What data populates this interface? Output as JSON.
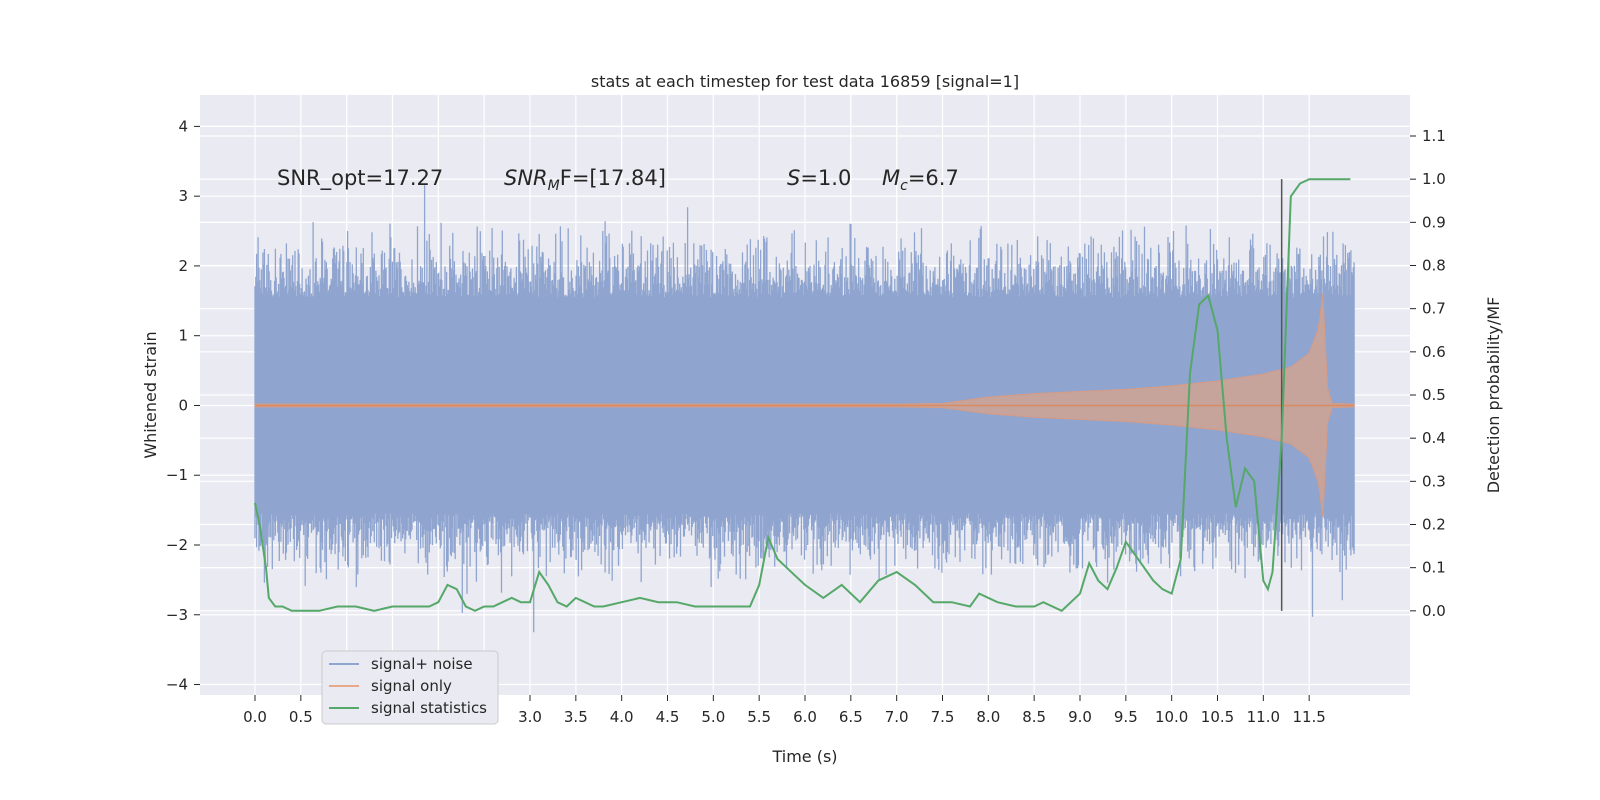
{
  "chart_data": {
    "type": "line",
    "title": "stats at each timestep for test data 16859 [signal=1]",
    "xlabel": "Time (s)",
    "ylabel": "Whitened strain",
    "y2label": "Detection probability/MF",
    "xlim": [
      -0.6,
      12.6
    ],
    "ylim": [
      -4.15,
      4.45
    ],
    "y2lim": [
      -0.195,
      1.195
    ],
    "x_ticks": [
      0.0,
      0.5,
      1.0,
      1.5,
      2.0,
      2.5,
      3.0,
      3.5,
      4.0,
      4.5,
      5.0,
      5.5,
      6.0,
      6.5,
      7.0,
      7.5,
      8.0,
      8.5,
      9.0,
      9.5,
      10.0,
      10.5,
      11.0,
      11.5
    ],
    "x_tick_labels": [
      "0.0",
      "0.5",
      "1.0",
      "1.5",
      "2.0",
      "2.5",
      "3.0",
      "3.5",
      "4.0",
      "4.5",
      "5.0",
      "5.5",
      "6.0",
      "6.5",
      "7.0",
      "7.5",
      "8.0",
      "8.5",
      "9.0",
      "9.5",
      "10.0",
      "10.5",
      "11.0",
      "11.5"
    ],
    "y_ticks": [
      -4,
      -3,
      -2,
      -1,
      0,
      1,
      2,
      3,
      4
    ],
    "y_tick_labels": [
      "−4",
      "−3",
      "−2",
      "−1",
      "0",
      "1",
      "2",
      "3",
      "4"
    ],
    "y2_ticks": [
      0.0,
      0.1,
      0.2,
      0.3,
      0.4,
      0.5,
      0.6,
      0.7,
      0.8,
      0.9,
      1.0,
      1.1
    ],
    "y2_tick_labels": [
      "0.0",
      "0.1",
      "0.2",
      "0.3",
      "0.4",
      "0.5",
      "0.6",
      "0.7",
      "0.8",
      "0.9",
      "1.0",
      "1.1"
    ],
    "grid": true,
    "legend_position": "lower-left",
    "annotations": {
      "snr_opt": "SNR_opt=17.27",
      "snr_mf_label": "SNR",
      "snr_mf_sub": "M",
      "snr_mf_rest": "F=[17.84]",
      "s_label": "S",
      "s_rest": "=1.0",
      "mc_label": "M",
      "mc_sub": "c",
      "mc_rest": "=6.7"
    },
    "series": [
      {
        "name": "signal+ noise",
        "color": "#8fa5cf",
        "axis": "left",
        "description_values": {
          "x_start": 0.0,
          "x_end": 11.99,
          "typical_amplitude": 1.4,
          "peak_max": 4.1,
          "peak_min": -3.75
        }
      },
      {
        "name": "signal only",
        "color": "#dd8452",
        "axis": "left",
        "envelope": {
          "x": [
            0.0,
            7.0,
            7.5,
            8.0,
            8.5,
            9.0,
            9.5,
            10.0,
            10.5,
            11.0,
            11.3,
            11.5,
            11.6,
            11.65,
            11.7,
            11.75,
            11.99
          ],
          "amp": [
            0.02,
            0.02,
            0.03,
            0.12,
            0.17,
            0.2,
            0.23,
            0.28,
            0.35,
            0.45,
            0.55,
            0.75,
            1.1,
            1.6,
            0.25,
            0.03,
            0.02
          ]
        }
      },
      {
        "name": "signal statistics",
        "color": "#55a868",
        "axis": "right",
        "x": [
          0.0,
          0.05,
          0.12,
          0.15,
          0.22,
          0.3,
          0.4,
          0.5,
          0.7,
          0.9,
          1.1,
          1.3,
          1.5,
          1.7,
          1.9,
          2.0,
          2.1,
          2.2,
          2.3,
          2.4,
          2.5,
          2.6,
          2.7,
          2.8,
          2.9,
          3.0,
          3.1,
          3.2,
          3.3,
          3.4,
          3.5,
          3.6,
          3.7,
          3.8,
          4.0,
          4.2,
          4.4,
          4.6,
          4.8,
          5.0,
          5.2,
          5.4,
          5.5,
          5.6,
          5.7,
          5.8,
          5.9,
          6.0,
          6.2,
          6.4,
          6.6,
          6.8,
          7.0,
          7.2,
          7.4,
          7.6,
          7.8,
          7.9,
          8.1,
          8.3,
          8.5,
          8.6,
          8.8,
          9.0,
          9.1,
          9.2,
          9.3,
          9.4,
          9.5,
          9.6,
          9.8,
          9.9,
          10.0,
          10.1,
          10.2,
          10.3,
          10.4,
          10.5,
          10.6,
          10.7,
          10.8,
          10.9,
          11.0,
          11.05,
          11.1,
          11.2,
          11.3,
          11.4,
          11.5,
          11.6,
          11.8,
          11.95
        ],
        "values": [
          0.25,
          0.2,
          0.1,
          0.03,
          0.01,
          0.01,
          0.0,
          0.0,
          0.0,
          0.01,
          0.01,
          0.0,
          0.01,
          0.01,
          0.01,
          0.02,
          0.06,
          0.05,
          0.01,
          0.0,
          0.01,
          0.01,
          0.02,
          0.03,
          0.02,
          0.02,
          0.09,
          0.06,
          0.02,
          0.01,
          0.03,
          0.02,
          0.01,
          0.01,
          0.02,
          0.03,
          0.02,
          0.02,
          0.01,
          0.01,
          0.01,
          0.01,
          0.06,
          0.17,
          0.12,
          0.1,
          0.08,
          0.06,
          0.03,
          0.06,
          0.02,
          0.07,
          0.09,
          0.06,
          0.02,
          0.02,
          0.01,
          0.04,
          0.02,
          0.01,
          0.01,
          0.02,
          0.0,
          0.04,
          0.11,
          0.07,
          0.05,
          0.1,
          0.16,
          0.13,
          0.07,
          0.05,
          0.04,
          0.12,
          0.55,
          0.71,
          0.73,
          0.65,
          0.4,
          0.24,
          0.33,
          0.3,
          0.07,
          0.05,
          0.09,
          0.4,
          0.96,
          0.99,
          1.0,
          1.0,
          1.0,
          1.0
        ],
        "vline_x": 11.2
      }
    ]
  }
}
